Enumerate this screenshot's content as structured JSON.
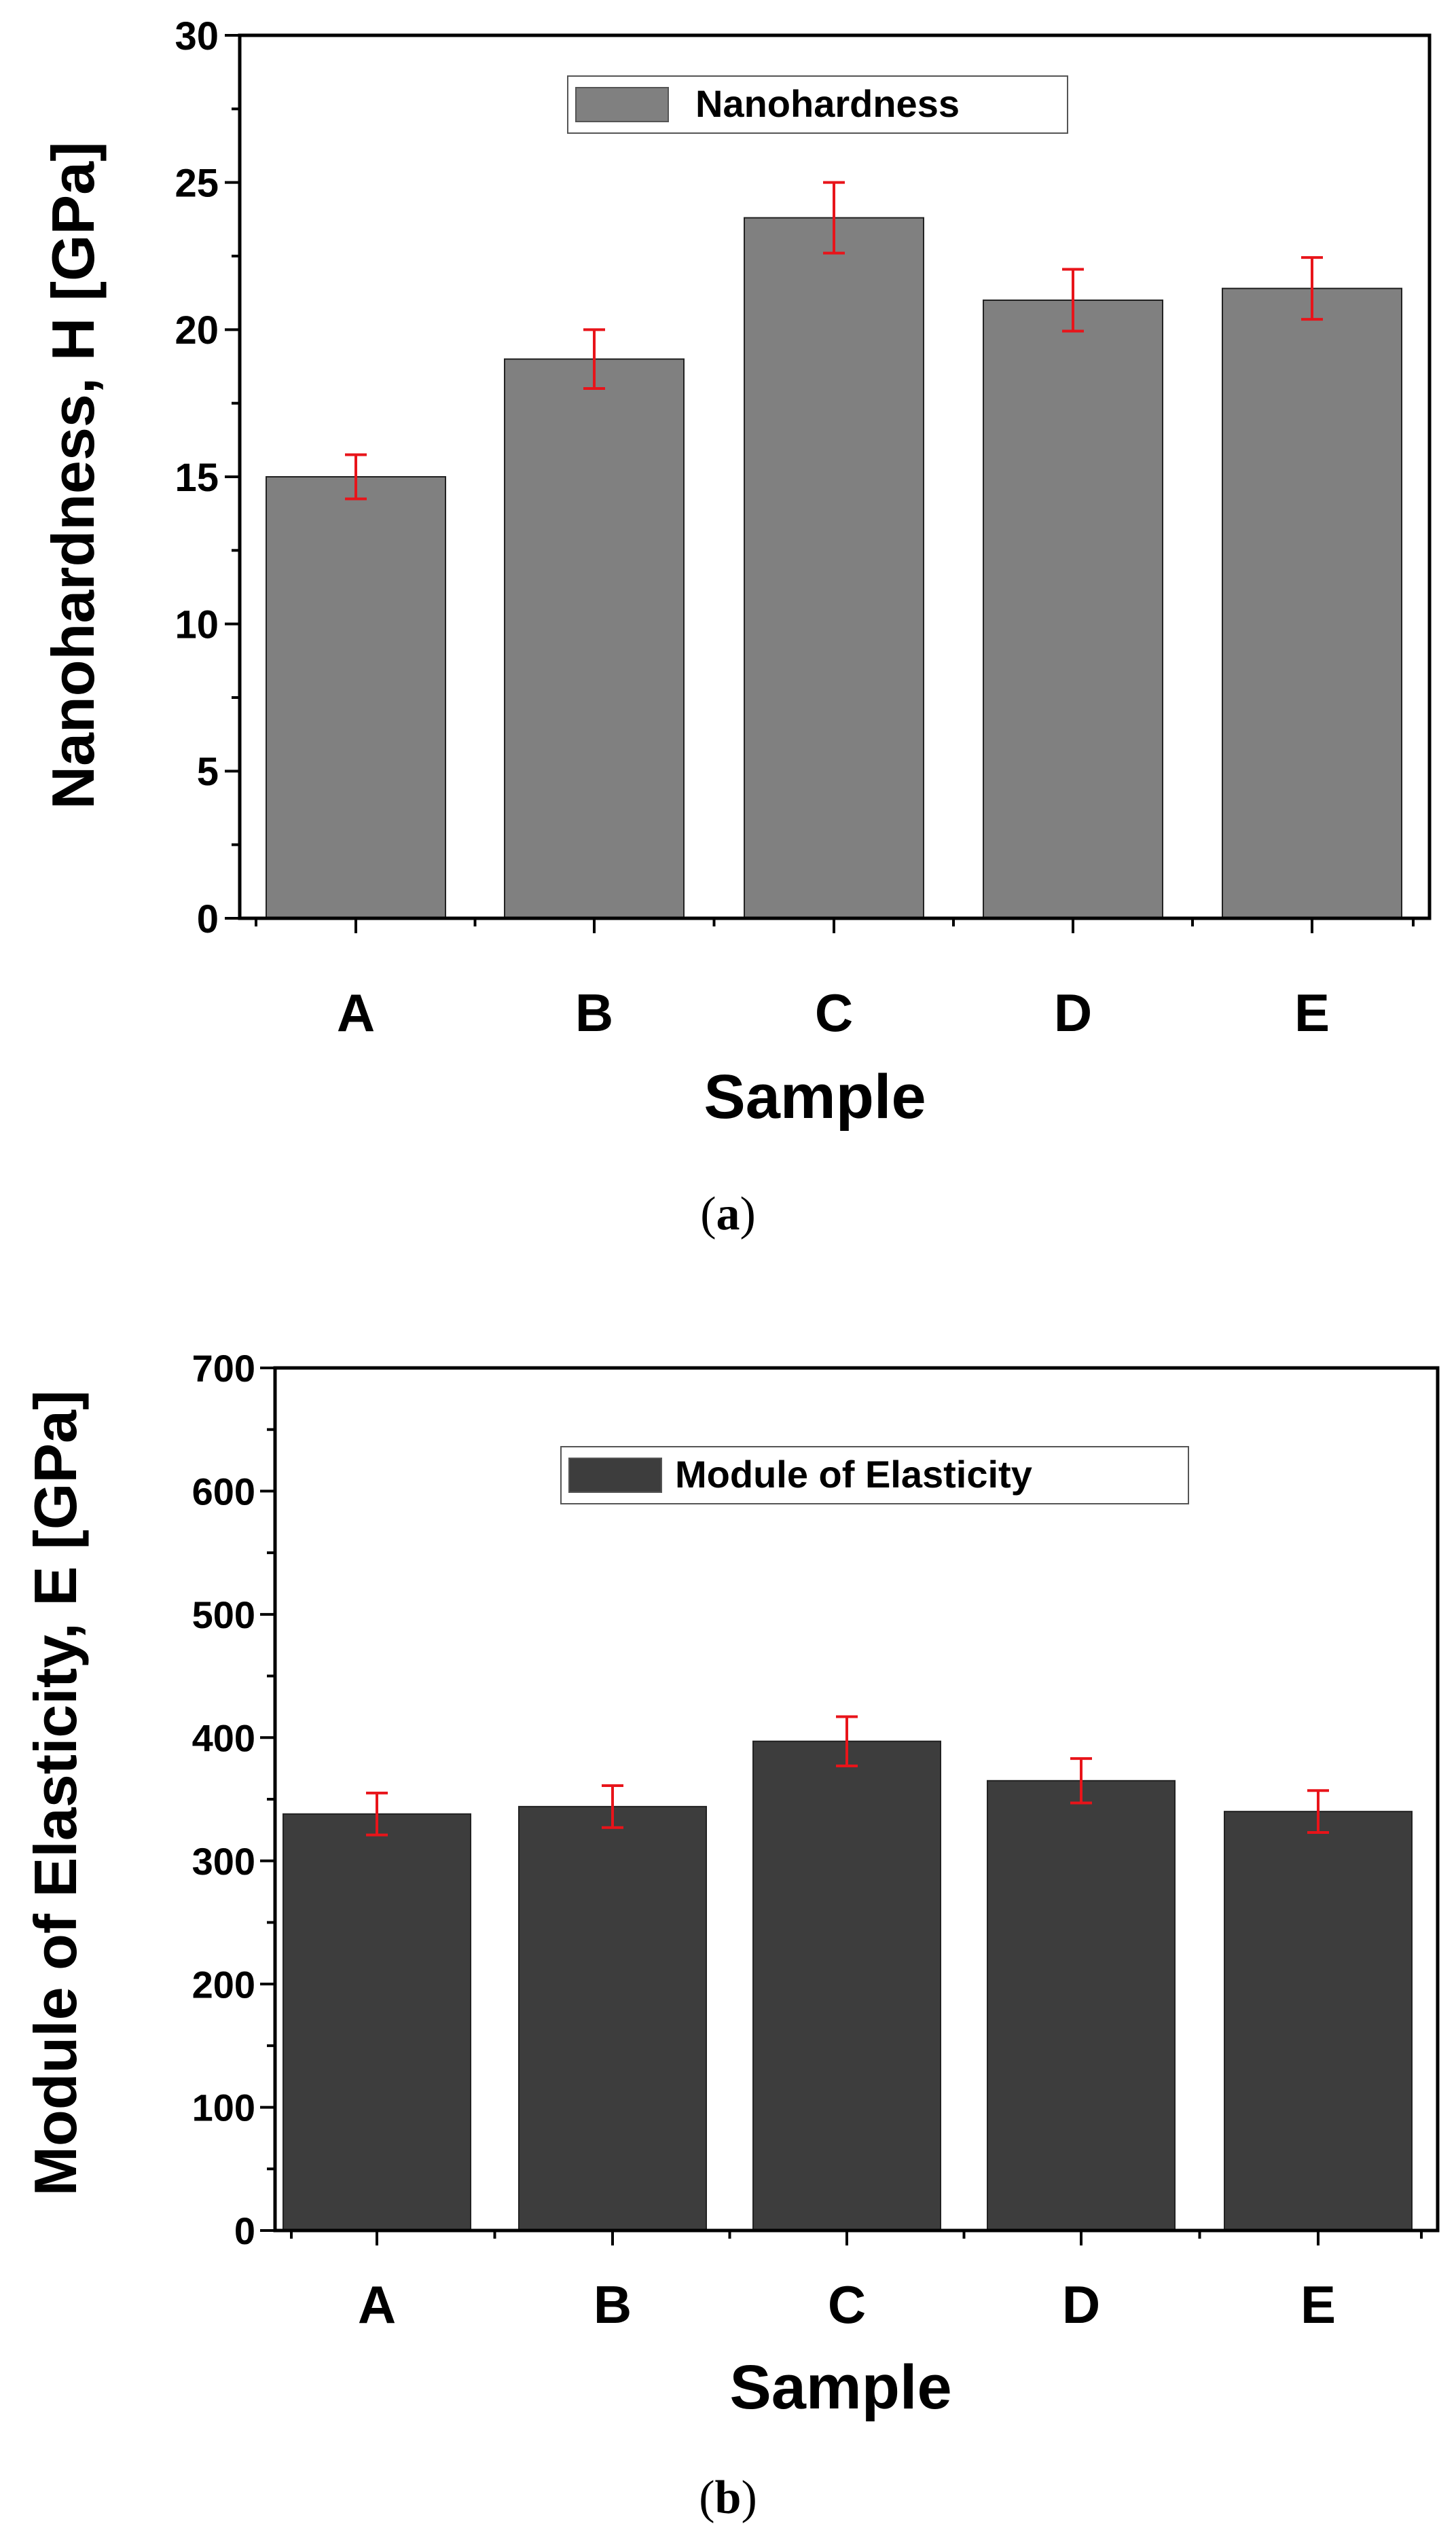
{
  "colors": {
    "bar_a": "#808080",
    "bar_b": "#3d3d3d",
    "error": "#e8141a",
    "axis": "#000000"
  },
  "chart_data": [
    {
      "id": "a",
      "type": "bar",
      "panel_label": "a",
      "title": "",
      "xlabel": "Sample",
      "ylabel": "Nanohardness, H [GPa]",
      "categories": [
        "A",
        "B",
        "C",
        "D",
        "E"
      ],
      "series": [
        {
          "name": "Nanohardness",
          "values": [
            15.0,
            19.0,
            23.8,
            21.0,
            21.4
          ],
          "errors": [
            0.75,
            1.0,
            1.2,
            1.05,
            1.05
          ]
        }
      ],
      "ylim": [
        0,
        30
      ],
      "yticks": [
        0,
        5,
        10,
        15,
        20,
        25,
        30
      ],
      "legend": "top-center",
      "grid": false
    },
    {
      "id": "b",
      "type": "bar",
      "panel_label": "b",
      "title": "",
      "xlabel": "Sample",
      "ylabel": "Module of Elasticity, E [GPa]",
      "categories": [
        "A",
        "B",
        "C",
        "D",
        "E"
      ],
      "series": [
        {
          "name": "Module of Elasticity",
          "values": [
            338,
            344,
            397,
            365,
            340
          ],
          "errors": [
            17,
            17,
            20,
            18,
            17
          ]
        }
      ],
      "ylim": [
        0,
        700
      ],
      "yticks": [
        0,
        100,
        200,
        300,
        400,
        500,
        600,
        700
      ],
      "legend": "top-center",
      "grid": false
    }
  ]
}
